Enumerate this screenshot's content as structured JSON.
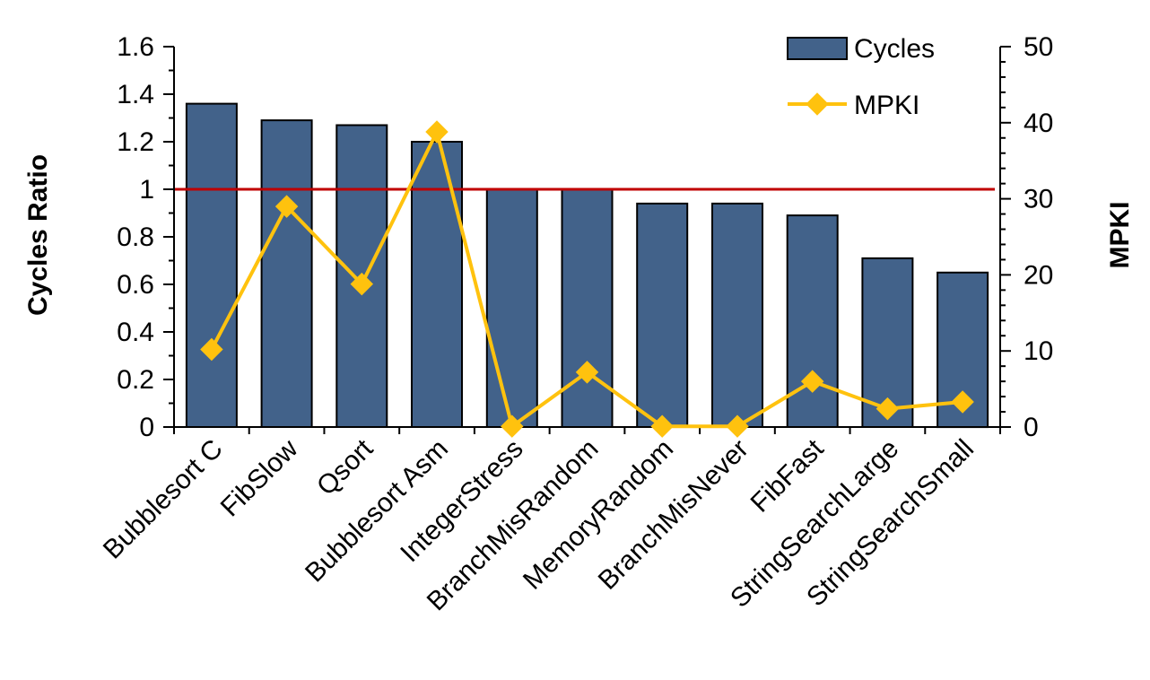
{
  "chart_data": {
    "type": "bar",
    "title": "",
    "categories": [
      "Bubblesort C",
      "FibSlow",
      "Qsort",
      "Bubblesort Asm",
      "IntegerStress",
      "BranchMisRandom",
      "MemoryRandom",
      "BranchMisNever",
      "FibFast",
      "StringSearchLarge",
      "StringSearchSmall"
    ],
    "series": [
      {
        "name": "Cycles",
        "type": "bar",
        "axis": "left",
        "color": "#42628A",
        "values": [
          1.36,
          1.29,
          1.27,
          1.2,
          1.0,
          1.0,
          0.94,
          0.94,
          0.89,
          0.71,
          0.65
        ]
      },
      {
        "name": "MPKI",
        "type": "line",
        "axis": "right",
        "color": "#FFC20E",
        "values": [
          10.2,
          29.0,
          18.8,
          38.8,
          0.1,
          7.2,
          0.1,
          0.1,
          6.0,
          2.4,
          3.3
        ]
      }
    ],
    "ylabel": "Cycles Ratio",
    "y2label": "MPKI",
    "ylim": [
      0,
      1.6
    ],
    "yticks": [
      "0",
      "0.2",
      "0.4",
      "0.6",
      "0.8",
      "1",
      "1.2",
      "1.4",
      "1.6"
    ],
    "y2lim": [
      0,
      50
    ],
    "y2ticks": [
      "0",
      "10",
      "20",
      "30",
      "40",
      "50"
    ],
    "reference_line": {
      "value": 1.0,
      "color": "#C00000"
    },
    "grid": false,
    "legend": "top-right"
  }
}
